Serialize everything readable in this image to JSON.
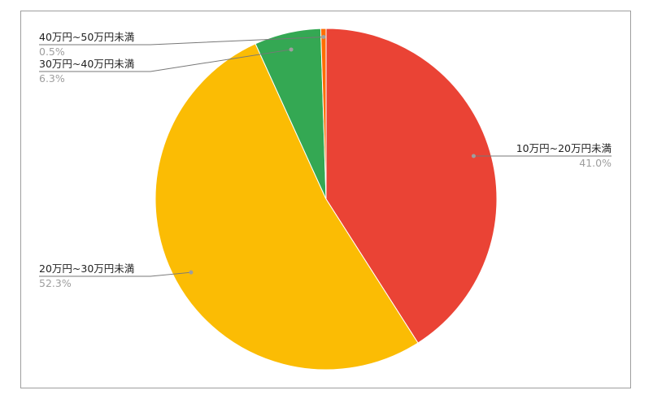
{
  "chart_data": {
    "type": "pie",
    "title": "",
    "start": "top",
    "direction": "clockwise",
    "slices": [
      {
        "label": "10万円~20万円未満",
        "value": 41.0,
        "pct_label": "41.0%",
        "color": "#ea4335"
      },
      {
        "label": "20万円~30万円未満",
        "value": 52.3,
        "pct_label": "52.3%",
        "color": "#fbbc04"
      },
      {
        "label": "30万円~40万円未満",
        "value": 6.3,
        "pct_label": "6.3%",
        "color": "#34a853"
      },
      {
        "label": "40万円~50万円未満",
        "value": 0.5,
        "pct_label": "0.5%",
        "color": "#ff6d01"
      }
    ]
  }
}
